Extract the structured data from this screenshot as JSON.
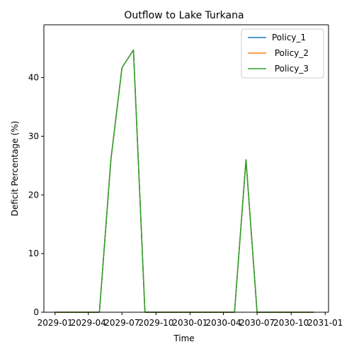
{
  "chart_data": {
    "type": "line",
    "title": "Outflow to Lake Turkana",
    "xlabel": "Time",
    "ylabel": "Deficit Percentage (%)",
    "x_tick_labels": [
      "2029-01",
      "2029-04",
      "2029-07",
      "2029-10",
      "2030-01",
      "2030-04",
      "2030-07",
      "2030-10",
      "2031-01"
    ],
    "x_tick_dates": [
      "2029-01-01",
      "2029-04-01",
      "2029-07-01",
      "2029-10-01",
      "2030-01-01",
      "2030-04-01",
      "2030-07-01",
      "2030-10-01",
      "2031-01-01"
    ],
    "y_ticks": [
      0,
      10,
      20,
      30,
      40
    ],
    "ylim": [
      0,
      49
    ],
    "xlim": [
      "2028-12-02",
      "2031-01-10"
    ],
    "x": [
      "2029-01-01",
      "2029-02-01",
      "2029-03-01",
      "2029-04-01",
      "2029-05-01",
      "2029-06-01",
      "2029-07-01",
      "2029-08-01",
      "2029-09-01",
      "2029-10-01",
      "2029-11-01",
      "2029-12-01",
      "2030-01-01",
      "2030-02-01",
      "2030-03-01",
      "2030-04-01",
      "2030-05-01",
      "2030-06-01",
      "2030-07-01",
      "2030-08-01",
      "2030-09-01",
      "2030-10-01",
      "2030-11-01",
      "2030-12-01"
    ],
    "series": [
      {
        "name": "Policy_1",
        "color": "#1f77b4",
        "values": [
          0,
          0,
          0,
          0,
          0,
          26,
          41.7,
          44.7,
          0,
          0,
          0,
          0,
          0,
          0,
          0,
          0,
          0,
          26,
          0,
          0,
          0,
          0,
          0,
          0
        ]
      },
      {
        "name": " Policy_2",
        "color": "#ff7f0e",
        "values": [
          0,
          0,
          0,
          0,
          0,
          26,
          41.7,
          44.7,
          0,
          0,
          0,
          0,
          0,
          0,
          0,
          0,
          0,
          26,
          0,
          0,
          0,
          0,
          0,
          0
        ]
      },
      {
        "name": " Policy_3",
        "color": "#2ca02c",
        "values": [
          0,
          0,
          0,
          0,
          0,
          26,
          41.7,
          44.7,
          0,
          0,
          0,
          0,
          0,
          0,
          0,
          0,
          0,
          26,
          0,
          0,
          0,
          0,
          0,
          0
        ]
      }
    ],
    "legend": "top-right",
    "grid": false
  }
}
